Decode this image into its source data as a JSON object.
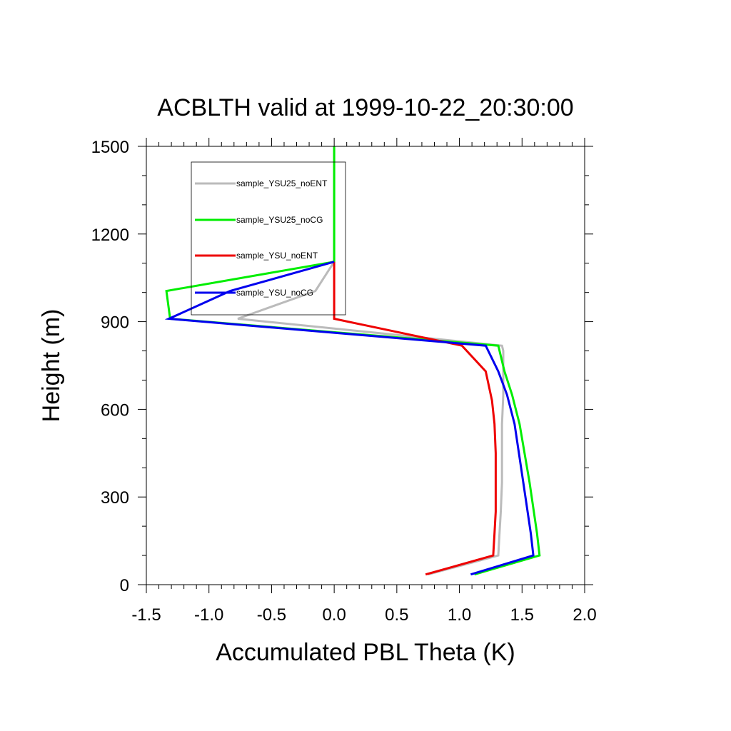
{
  "chart_data": {
    "type": "line",
    "title": "ACBLTH valid at 1999-10-22_20:30:00",
    "xlabel": "Accumulated PBL Theta (K)",
    "ylabel": "Height (m)",
    "xlim": [
      -1.5,
      2.0
    ],
    "ylim": [
      0,
      1500
    ],
    "xticks": [
      "-1.5",
      "-1.0",
      "-0.5",
      "0.0",
      "0.5",
      "1.0",
      "1.5",
      "2.0"
    ],
    "xtick_values": [
      -1.5,
      -1.0,
      -0.5,
      0.0,
      0.5,
      1.0,
      1.5,
      2.0
    ],
    "yticks": [
      "0",
      "300",
      "600",
      "900",
      "1200",
      "1500"
    ],
    "ytick_values": [
      0,
      300,
      600,
      900,
      1200,
      1500
    ],
    "grid": false,
    "legend_position": "top-left",
    "series": [
      {
        "name": "sample_YSU25_noENT",
        "color": "#bbbbbb",
        "x": [
          0.75,
          1.31,
          1.32,
          1.33,
          1.34,
          1.34,
          1.34,
          1.35,
          1.35,
          1.35,
          1.34,
          -0.77,
          -0.15,
          0.0,
          0.0,
          0.0,
          0.0
        ],
        "y": [
          35,
          100,
          175,
          250,
          350,
          450,
          550,
          650,
          730,
          800,
          818,
          910,
          1005,
          1105,
          1200,
          1350,
          1500
        ]
      },
      {
        "name": "sample_YSU25_noCG",
        "color": "#00ee00",
        "x": [
          1.12,
          1.64,
          1.62,
          1.56,
          1.48,
          1.42,
          1.36,
          1.31,
          -1.31,
          -1.34,
          0.0,
          0.0,
          0.0,
          0.0
        ],
        "y": [
          35,
          100,
          175,
          350,
          550,
          650,
          730,
          818,
          910,
          1005,
          1105,
          1200,
          1350,
          1500
        ]
      },
      {
        "name": "sample_YSU_noENT",
        "color": "#ee0000",
        "x": [
          0.73,
          1.27,
          1.28,
          1.29,
          1.29,
          1.29,
          1.28,
          1.26,
          1.21,
          1.02,
          0.0,
          0.0,
          0.0
        ],
        "y": [
          35,
          100,
          175,
          250,
          350,
          450,
          550,
          630,
          730,
          818,
          910,
          1005,
          1105
        ]
      },
      {
        "name": "sample_YSU_noCG",
        "color": "#0000ee",
        "x": [
          1.09,
          1.59,
          1.57,
          1.51,
          1.44,
          1.38,
          1.31,
          1.21,
          -1.32,
          -0.83,
          0.0
        ],
        "y": [
          35,
          100,
          175,
          350,
          550,
          650,
          730,
          818,
          910,
          1005,
          1105
        ]
      }
    ]
  }
}
